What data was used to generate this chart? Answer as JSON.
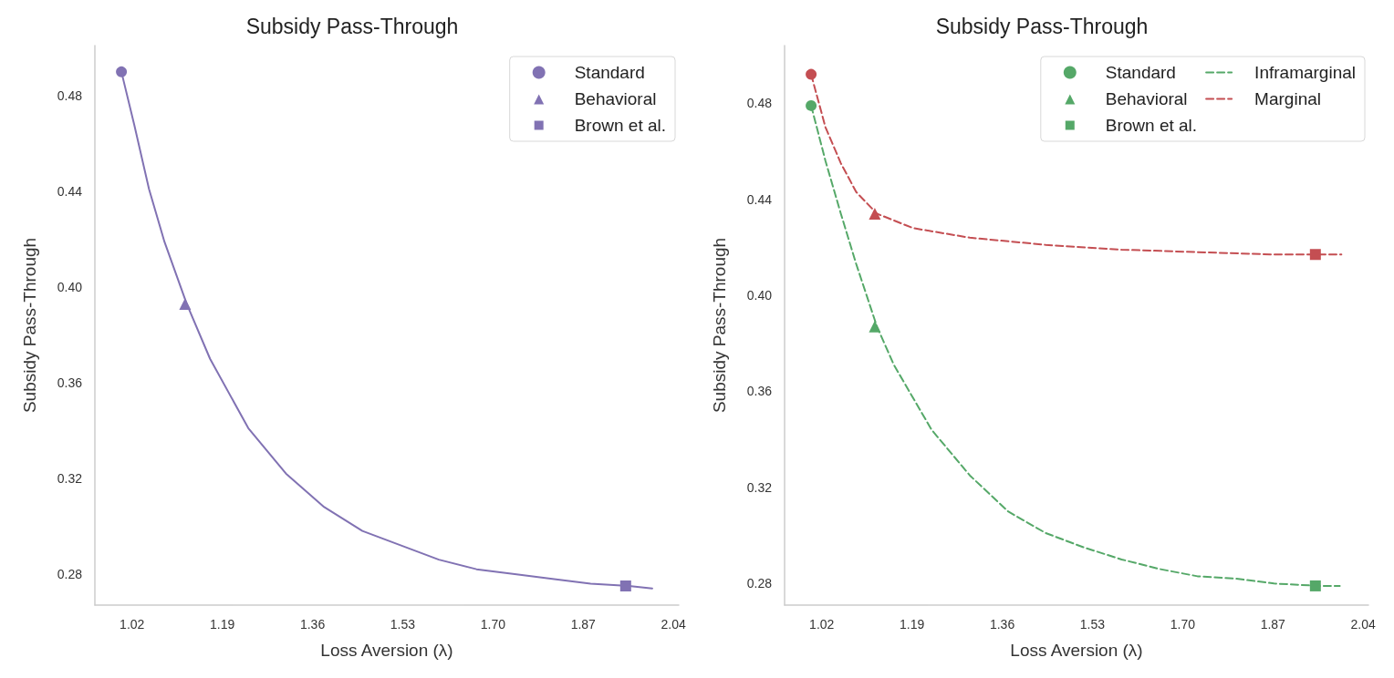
{
  "chart_data": [
    {
      "type": "line",
      "title": "Subsidy Pass-Through",
      "xlabel": "Loss Aversion (λ)",
      "ylabel": "Subsidy Pass-Through",
      "xlim": [
        0.95,
        2.05
      ],
      "ylim": [
        0.267,
        0.501
      ],
      "xticks": [
        1.02,
        1.19,
        1.36,
        1.53,
        {
          "value": 1.7,
          "label": "1.70"
        },
        1.87,
        2.04
      ],
      "yticks": [
        0.28,
        0.32,
        0.36,
        {
          "value": 0.4,
          "label": "0.40"
        },
        0.44,
        0.48
      ],
      "grid": false,
      "legend": "top right",
      "series": [
        {
          "type": "line",
          "color": "#8172b3",
          "line_style": "solid",
          "marker": "none",
          "x": [
            1.0,
            1.024,
            1.052,
            1.081,
            1.123,
            1.167,
            1.239,
            1.31,
            1.382,
            1.454,
            1.526,
            1.598,
            1.669,
            1.741,
            1.812,
            1.884,
            1.956,
            2.0
          ],
          "values": [
            0.49,
            0.468,
            0.441,
            0.419,
            0.393,
            0.37,
            0.341,
            0.322,
            0.308,
            0.298,
            0.292,
            0.286,
            0.282,
            0.28,
            0.278,
            0.276,
            0.275,
            0.274
          ]
        },
        {
          "type": "scatter",
          "name": "Standard",
          "color": "#8172b3",
          "marker": "circle",
          "x": [
            1.0
          ],
          "values": [
            0.49
          ]
        },
        {
          "type": "scatter",
          "name": "Behavioral",
          "color": "#8172b3",
          "marker": "triangle",
          "x": [
            1.12
          ],
          "values": [
            0.393
          ]
        },
        {
          "type": "scatter",
          "name": "Brown et al.",
          "color": "#8172b3",
          "marker": "square",
          "x": [
            1.95
          ],
          "values": [
            0.275
          ]
        }
      ]
    },
    {
      "type": "line",
      "title": "Subsidy Pass-Through",
      "xlabel": "Loss Aversion (λ)",
      "ylabel": "Subsidy Pass-Through",
      "xlim": [
        0.95,
        2.05
      ],
      "ylim": [
        0.271,
        0.504
      ],
      "xticks": [
        1.02,
        1.19,
        1.36,
        1.53,
        {
          "value": 1.7,
          "label": "1.70"
        },
        1.87,
        2.04
      ],
      "yticks": [
        0.28,
        0.32,
        0.36,
        {
          "value": 0.4,
          "label": "0.40"
        },
        0.44,
        0.48
      ],
      "grid": false,
      "legend": "top right",
      "series": [
        {
          "type": "scatter",
          "name": "Standard",
          "color": "#55a868",
          "marker": "circle",
          "x": [
            1.0
          ],
          "values": [
            0.479
          ]
        },
        {
          "type": "scatter",
          "name": "Behavioral",
          "color": "#55a868",
          "marker": "triangle",
          "x": [
            1.12
          ],
          "values": [
            0.387
          ]
        },
        {
          "type": "scatter",
          "name": "Brown et al.",
          "color": "#55a868",
          "marker": "square",
          "x": [
            1.95
          ],
          "values": [
            0.279
          ]
        },
        {
          "type": "line",
          "name": "Inframarginal",
          "color": "#55a868",
          "line_style": "dashed",
          "marker": "none",
          "x": [
            1.0,
            1.027,
            1.056,
            1.085,
            1.124,
            1.156,
            1.227,
            1.299,
            1.371,
            1.442,
            1.514,
            1.585,
            1.657,
            1.728,
            1.8,
            1.872,
            1.956,
            1.996
          ],
          "values": [
            0.479,
            0.456,
            0.434,
            0.413,
            0.387,
            0.371,
            0.344,
            0.325,
            0.31,
            0.301,
            0.295,
            0.29,
            0.286,
            0.283,
            0.282,
            0.28,
            0.279,
            0.279
          ]
        },
        {
          "type": "line",
          "name": "Marginal",
          "color": "#c44e52",
          "line_style": "dashed",
          "marker": "none",
          "x": [
            1.0,
            1.027,
            1.056,
            1.085,
            1.124,
            1.192,
            1.299,
            1.442,
            1.585,
            1.728,
            1.872,
            1.956,
            1.999
          ],
          "values": [
            0.492,
            0.47,
            0.455,
            0.443,
            0.434,
            0.428,
            0.424,
            0.421,
            0.419,
            0.418,
            0.417,
            0.417,
            0.417
          ]
        },
        {
          "type": "scatter",
          "color": "#c44e52",
          "marker": "circle",
          "x": [
            1.0
          ],
          "values": [
            0.492
          ]
        },
        {
          "type": "scatter",
          "color": "#c44e52",
          "marker": "triangle",
          "x": [
            1.12
          ],
          "values": [
            0.434
          ]
        },
        {
          "type": "scatter",
          "color": "#c44e52",
          "marker": "square",
          "x": [
            1.95
          ],
          "values": [
            0.417
          ]
        }
      ]
    }
  ]
}
